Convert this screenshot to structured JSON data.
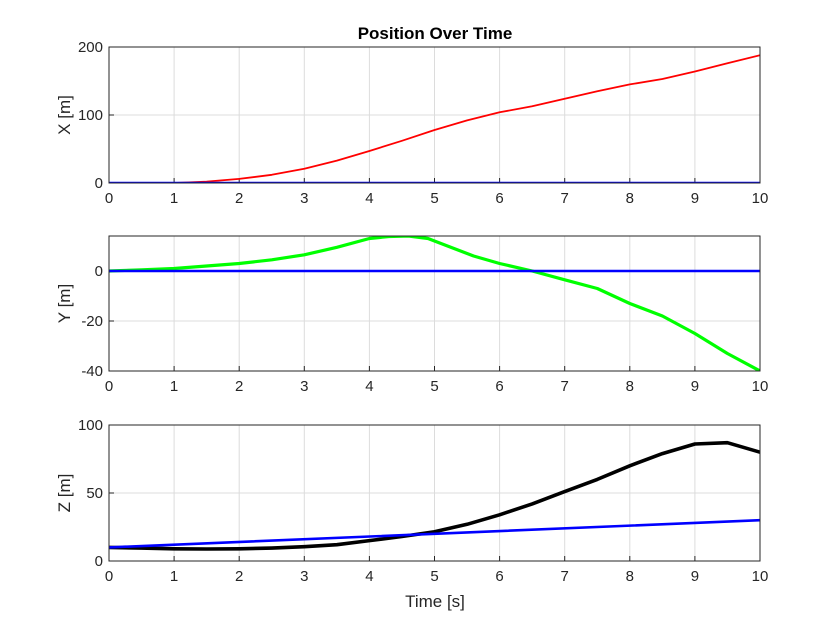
{
  "figure": {
    "title": "Position Over Time",
    "xlabel": "Time [s]"
  },
  "chart_data": [
    {
      "type": "line",
      "title": "Position Over Time",
      "xlabel": "",
      "ylabel": "X [m]",
      "xlim": [
        0,
        10
      ],
      "ylim": [
        0,
        200
      ],
      "xticks": [
        "0",
        "1",
        "2",
        "3",
        "4",
        "5",
        "6",
        "7",
        "8",
        "9",
        "10"
      ],
      "yticks": [
        "0",
        "100",
        "200"
      ],
      "grid": true,
      "series": [
        {
          "color": "#ff0000",
          "width": 1.8,
          "x": [
            0,
            1,
            1.5,
            2,
            2.5,
            3,
            3.5,
            4,
            4.5,
            5,
            5.5,
            6,
            6.5,
            7,
            7.5,
            8,
            8.5,
            9,
            9.5,
            10
          ],
          "y": [
            0,
            0,
            2,
            6,
            12,
            21,
            33,
            47,
            62,
            78,
            92,
            104,
            113,
            124,
            135,
            145,
            153,
            164,
            176,
            188
          ]
        },
        {
          "color": "#0000ff",
          "width": 2.6,
          "x": [
            0,
            10
          ],
          "y": [
            0,
            0
          ]
        }
      ]
    },
    {
      "type": "line",
      "title": "",
      "xlabel": "",
      "ylabel": "Y [m]",
      "xlim": [
        0,
        10
      ],
      "ylim": [
        -40,
        14
      ],
      "xticks": [
        "0",
        "1",
        "2",
        "3",
        "4",
        "5",
        "6",
        "7",
        "8",
        "9",
        "10"
      ],
      "yticks": [
        "-40",
        "-20",
        "0"
      ],
      "grid": true,
      "series": [
        {
          "color": "#00ff00",
          "width": 3.2,
          "x": [
            0,
            0.5,
            1,
            1.5,
            2,
            2.5,
            3,
            3.5,
            4,
            4.3,
            4.6,
            4.9,
            5.2,
            5.6,
            6,
            6.5,
            7,
            7.5,
            8,
            8.5,
            9,
            9.5,
            10
          ],
          "y": [
            0,
            0.5,
            1,
            2,
            3,
            4.5,
            6.5,
            9.5,
            13,
            13.8,
            14,
            13,
            10,
            6,
            3,
            0,
            -3.5,
            -7,
            -13,
            -18,
            -25,
            -33,
            -40
          ]
        },
        {
          "color": "#0000ff",
          "width": 2.6,
          "x": [
            0,
            10
          ],
          "y": [
            0,
            0
          ]
        }
      ]
    },
    {
      "type": "line",
      "title": "",
      "xlabel": "Time [s]",
      "ylabel": "Z [m]",
      "xlim": [
        0,
        10
      ],
      "ylim": [
        0,
        100
      ],
      "xticks": [
        "0",
        "1",
        "2",
        "3",
        "4",
        "5",
        "6",
        "7",
        "8",
        "9",
        "10"
      ],
      "yticks": [
        "0",
        "50",
        "100"
      ],
      "grid": true,
      "series": [
        {
          "color": "#000000",
          "width": 3.6,
          "x": [
            0,
            0.5,
            1,
            1.5,
            2,
            2.5,
            3,
            3.5,
            4,
            4.5,
            5,
            5.5,
            6,
            6.5,
            7,
            7.5,
            8,
            8.5,
            9,
            9.5,
            10
          ],
          "y": [
            10,
            9.5,
            9,
            8.8,
            9,
            9.5,
            10.5,
            12,
            15,
            18,
            21.5,
            27,
            34,
            42,
            51,
            60,
            70,
            79,
            86,
            87,
            80
          ]
        },
        {
          "color": "#0000ff",
          "width": 2.6,
          "x": [
            0,
            10
          ],
          "y": [
            10,
            30
          ]
        }
      ]
    }
  ]
}
